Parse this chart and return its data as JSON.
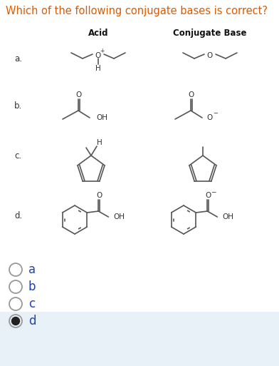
{
  "title": "Which of the following conjugate bases is correct?",
  "title_color": "#e05a00",
  "title_fontsize": 10.5,
  "col1_header": "Acid",
  "col2_header": "Conjugate Base",
  "header_fontsize": 8.5,
  "bg_color": "#ffffff",
  "highlight_color": "#e8f0f8",
  "options": [
    "a",
    "b",
    "c",
    "d"
  ],
  "selected": "d",
  "option_fontsize": 12,
  "label_fontsize": 8.5,
  "label_color": "#333333",
  "line_color": "#555555",
  "text_color": "#333333"
}
